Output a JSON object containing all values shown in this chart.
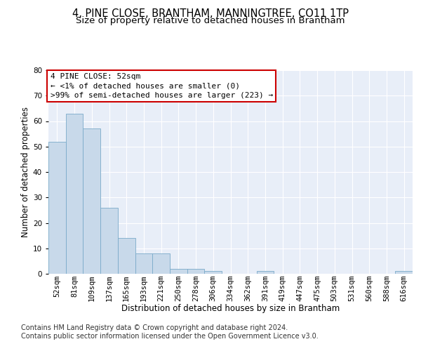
{
  "title_line1": "4, PINE CLOSE, BRANTHAM, MANNINGTREE, CO11 1TP",
  "title_line2": "Size of property relative to detached houses in Brantham",
  "xlabel": "Distribution of detached houses by size in Brantham",
  "ylabel": "Number of detached properties",
  "categories": [
    "52sqm",
    "81sqm",
    "109sqm",
    "137sqm",
    "165sqm",
    "193sqm",
    "221sqm",
    "250sqm",
    "278sqm",
    "306sqm",
    "334sqm",
    "362sqm",
    "391sqm",
    "419sqm",
    "447sqm",
    "475sqm",
    "503sqm",
    "531sqm",
    "560sqm",
    "588sqm",
    "616sqm"
  ],
  "values": [
    52,
    63,
    57,
    26,
    14,
    8,
    8,
    2,
    2,
    1,
    0,
    0,
    1,
    0,
    0,
    0,
    0,
    0,
    0,
    0,
    1
  ],
  "bar_color": "#c8d9ea",
  "bar_edge_color": "#7aaac9",
  "background_color": "#e8eef8",
  "annotation_text": "4 PINE CLOSE: 52sqm\n← <1% of detached houses are smaller (0)\n>99% of semi-detached houses are larger (223) →",
  "annotation_box_color": "#ffffff",
  "annotation_box_edge_color": "#cc0000",
  "ylim": [
    0,
    80
  ],
  "yticks": [
    0,
    10,
    20,
    30,
    40,
    50,
    60,
    70,
    80
  ],
  "footer_line1": "Contains HM Land Registry data © Crown copyright and database right 2024.",
  "footer_line2": "Contains public sector information licensed under the Open Government Licence v3.0.",
  "grid_color": "#ffffff",
  "fig_bg_color": "#ffffff",
  "title_fontsize": 10.5,
  "subtitle_fontsize": 9.5,
  "axis_label_fontsize": 8.5,
  "tick_fontsize": 7.5,
  "footer_fontsize": 7.0,
  "annotation_fontsize": 8.0
}
